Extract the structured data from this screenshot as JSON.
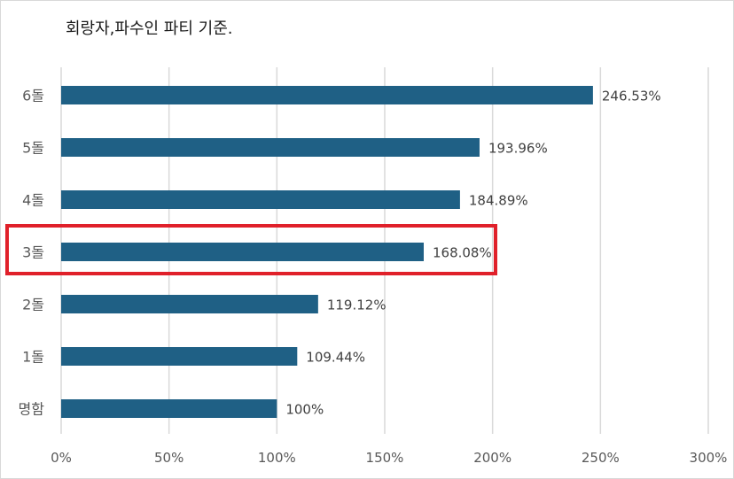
{
  "chart_data": {
    "type": "bar",
    "orientation": "horizontal",
    "title": "회랑자,파수인 파티 기준.",
    "categories": [
      "6돌",
      "5돌",
      "4돌",
      "3돌",
      "2돌",
      "1돌",
      "명함"
    ],
    "values": [
      246.53,
      193.96,
      184.89,
      168.08,
      119.12,
      109.44,
      100
    ],
    "data_labels": [
      "246.53%",
      "193.96%",
      "184.89%",
      "168.08%",
      "119.12%",
      "109.44%",
      "100%"
    ],
    "xlim": [
      0,
      300
    ],
    "x_ticks": [
      0,
      50,
      100,
      150,
      200,
      250,
      300
    ],
    "x_tick_labels": [
      "0%",
      "50%",
      "100%",
      "150%",
      "200%",
      "250%",
      "300%"
    ],
    "grid": "vertical",
    "bar_color": "#1f6085",
    "highlight": {
      "category": "3돌",
      "color": "#e0202a"
    }
  }
}
